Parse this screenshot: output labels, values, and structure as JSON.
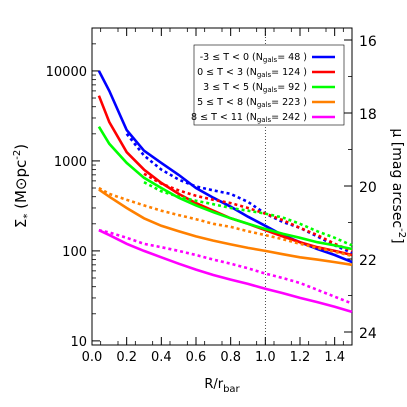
{
  "chart_data": {
    "type": "line",
    "xlabel": "R/r",
    "xlabel_sub": "bar",
    "ylabel": "Σ",
    "ylabel_sub": "*",
    "ylabel_units": "(M⊙pc",
    "ylabel_units_sup": "-2",
    "ylabel_units_close": ")",
    "y2label": "μ [mag arcsec",
    "y2label_sup": "-2",
    "y2label_close": "]",
    "xlim": [
      0,
      1.5
    ],
    "ylim": [
      9,
      30000
    ],
    "yscale": "log",
    "x_ticks": [
      0,
      0.2,
      0.4,
      0.6,
      0.8,
      1.0,
      1.2,
      1.4
    ],
    "x_tick_labels": [
      "0.0",
      "0.2",
      "0.4",
      "0.6",
      "0.8",
      "1.0",
      "1.2",
      "1.4"
    ],
    "y_ticks": [
      10,
      100,
      1000,
      10000
    ],
    "y_tick_labels": [
      "10",
      "100",
      "1000",
      "10000"
    ],
    "y2_ticks": [
      16,
      18,
      20,
      22,
      24
    ],
    "y2_tick_labels": [
      "16",
      "18",
      "20",
      "22",
      "24"
    ],
    "vline_x": 1.0,
    "legend_position": "top-right",
    "series": [
      {
        "name": "-3 ≤ T < 0",
        "ngals": "48",
        "color": "#0000ff",
        "solid": {
          "x": [
            0.04,
            0.1,
            0.2,
            0.3,
            0.4,
            0.5,
            0.6,
            0.7,
            0.8,
            0.9,
            1.0,
            1.1,
            1.2,
            1.3,
            1.4,
            1.5
          ],
          "y": [
            10000,
            6000,
            2200,
            1300,
            950,
            700,
            500,
            390,
            310,
            240,
            190,
            150,
            125,
            105,
            90,
            75
          ]
        },
        "dotted": {
          "x": [
            0.2,
            0.3,
            0.4,
            0.5,
            0.6,
            0.7,
            0.8,
            0.9,
            1.0,
            1.1,
            1.2,
            1.3,
            1.4,
            1.5
          ],
          "y": [
            2000,
            1150,
            800,
            620,
            520,
            470,
            430,
            350,
            260,
            210,
            180,
            145,
            115,
            95
          ]
        }
      },
      {
        "name": "0 ≤ T < 3",
        "ngals": "124",
        "color": "#ff0000",
        "solid": {
          "x": [
            0.04,
            0.1,
            0.2,
            0.3,
            0.4,
            0.5,
            0.6,
            0.7,
            0.8,
            0.9,
            1.0,
            1.1,
            1.2,
            1.3,
            1.4,
            1.5
          ],
          "y": [
            5300,
            2700,
            1250,
            800,
            570,
            430,
            340,
            280,
            230,
            200,
            170,
            145,
            125,
            110,
            100,
            90
          ]
        },
        "dotted": {
          "x": [
            0.3,
            0.4,
            0.5,
            0.6,
            0.7,
            0.8,
            0.9,
            1.0,
            1.1,
            1.2,
            1.3,
            1.4,
            1.5
          ],
          "y": [
            720,
            560,
            470,
            410,
            370,
            340,
            300,
            260,
            220,
            180,
            150,
            120,
            100
          ]
        }
      },
      {
        "name": "3 ≤ T < 5",
        "ngals": "92",
        "color": "#00ff00",
        "solid": {
          "x": [
            0.04,
            0.1,
            0.2,
            0.3,
            0.4,
            0.5,
            0.6,
            0.7,
            0.8,
            0.9,
            1.0,
            1.1,
            1.2,
            1.3,
            1.4,
            1.5
          ],
          "y": [
            2400,
            1550,
            950,
            650,
            500,
            390,
            320,
            270,
            230,
            200,
            175,
            155,
            140,
            125,
            115,
            105
          ]
        },
        "dotted": {
          "x": [
            0.3,
            0.4,
            0.5,
            0.6,
            0.7,
            0.8,
            0.9,
            1.0,
            1.1,
            1.2,
            1.3,
            1.4,
            1.5
          ],
          "y": [
            580,
            460,
            400,
            360,
            330,
            300,
            280,
            260,
            235,
            200,
            165,
            140,
            115
          ]
        }
      },
      {
        "name": "5 ≤ T < 8",
        "ngals": "223",
        "color": "#ff8000",
        "solid": {
          "x": [
            0.04,
            0.1,
            0.2,
            0.3,
            0.4,
            0.5,
            0.6,
            0.7,
            0.8,
            0.9,
            1.0,
            1.1,
            1.2,
            1.3,
            1.4,
            1.5
          ],
          "y": [
            480,
            400,
            300,
            230,
            190,
            165,
            145,
            130,
            118,
            108,
            100,
            92,
            85,
            80,
            75,
            70
          ]
        },
        "dotted": {
          "x": [
            0.04,
            0.1,
            0.2,
            0.3,
            0.4,
            0.5,
            0.6,
            0.7,
            0.8,
            0.9,
            1.0,
            1.1,
            1.2,
            1.3,
            1.4,
            1.5
          ],
          "y": [
            500,
            430,
            370,
            320,
            280,
            250,
            225,
            200,
            185,
            165,
            150,
            135,
            120,
            108,
            98,
            88
          ]
        }
      },
      {
        "name": "8 ≤ T < 11",
        "ngals": "242",
        "color": "#ff00ff",
        "solid": {
          "x": [
            0.04,
            0.1,
            0.2,
            0.3,
            0.4,
            0.5,
            0.6,
            0.7,
            0.8,
            0.9,
            1.0,
            1.1,
            1.2,
            1.3,
            1.4,
            1.5
          ],
          "y": [
            170,
            150,
            120,
            100,
            85,
            72,
            62,
            54,
            48,
            43,
            38,
            34,
            30,
            27,
            24,
            21
          ]
        },
        "dotted": {
          "x": [
            0.04,
            0.1,
            0.2,
            0.3,
            0.4,
            0.5,
            0.6,
            0.7,
            0.8,
            0.9,
            1.0,
            1.1,
            1.2,
            1.3,
            1.4,
            1.5
          ],
          "y": [
            170,
            160,
            140,
            120,
            110,
            100,
            90,
            80,
            72,
            64,
            56,
            50,
            44,
            37,
            31,
            26
          ]
        }
      }
    ]
  }
}
